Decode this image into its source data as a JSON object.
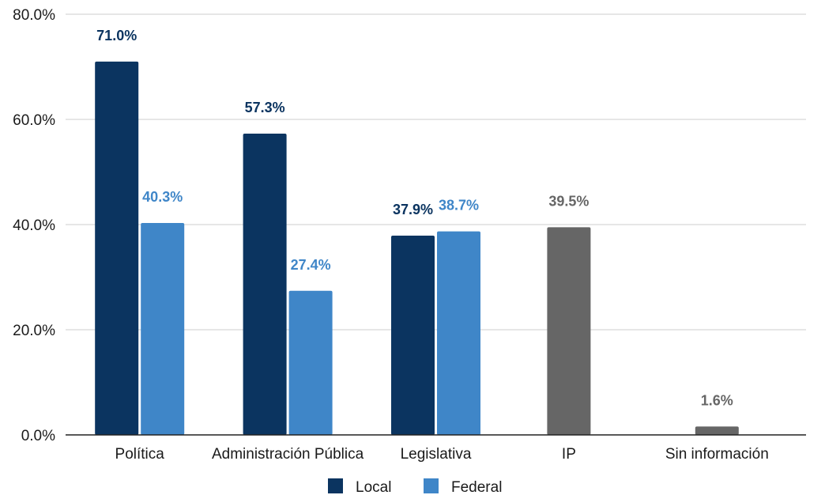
{
  "chart_data": {
    "type": "bar",
    "categories": [
      "Política",
      "Administración Pública",
      "Legislativa",
      "IP",
      "Sin información"
    ],
    "series": [
      {
        "name": "Local",
        "color": "#0b3460",
        "values": [
          71.0,
          57.3,
          37.9,
          null,
          null
        ]
      },
      {
        "name": "Federal",
        "color": "#3f86c8",
        "values": [
          40.3,
          27.4,
          38.7,
          null,
          null
        ]
      },
      {
        "name": "",
        "color": "#666666",
        "values": [
          null,
          null,
          null,
          39.5,
          1.6
        ]
      }
    ],
    "data_labels": [
      [
        "71.0%",
        "57.3%",
        "37.9%",
        null,
        null
      ],
      [
        "40.3%",
        "27.4%",
        "38.7%",
        null,
        null
      ],
      [
        null,
        null,
        null,
        "39.5%",
        "1.6%"
      ]
    ],
    "y_ticks": [
      0,
      20,
      40,
      60,
      80
    ],
    "y_tick_labels": [
      "0.0%",
      "20.0%",
      "40.0%",
      "60.0%",
      "80.0%"
    ],
    "ylim": [
      0,
      80
    ],
    "grid": true,
    "legend": {
      "position": "bottom",
      "entries": [
        "Local",
        "Federal"
      ]
    }
  }
}
